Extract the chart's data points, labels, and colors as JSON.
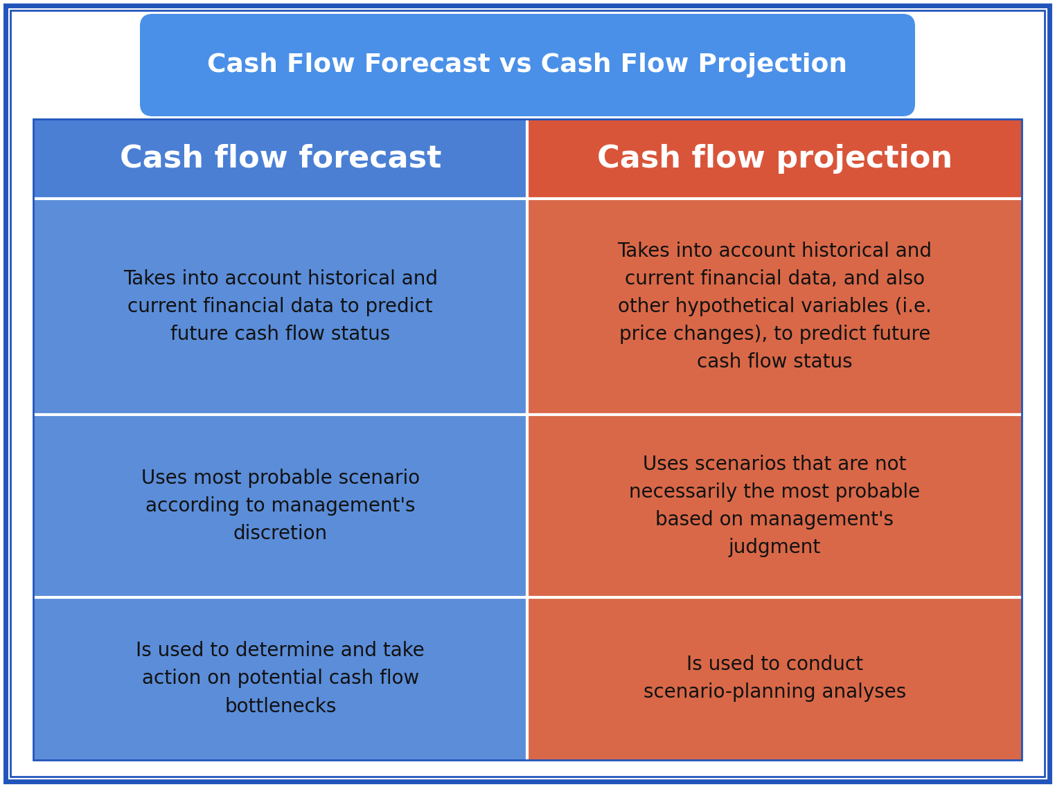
{
  "title": "Cash Flow Forecast vs Cash Flow Projection",
  "title_bg_color": "#4a90e8",
  "title_text_color": "#ffffff",
  "background_color": "#ffffff",
  "outer_border_color": "#2255bb",
  "col1_header": "Cash flow forecast",
  "col2_header": "Cash flow projection",
  "col1_header_bg": "#4a7fd4",
  "col2_header_bg": "#d9553a",
  "header_text_color": "#ffffff",
  "col1_row_bg": "#5b8dd9",
  "col2_row_bg": "#d96848",
  "row_text_color": "#111111",
  "rows": [
    {
      "col1": "Takes into account historical and\ncurrent financial data to predict\nfuture cash flow status",
      "col2": "Takes into account historical and\ncurrent financial data, and also\nother hypothetical variables (i.e.\nprice changes), to predict future\ncash flow status"
    },
    {
      "col1": "Uses most probable scenario\naccording to management's\ndiscretion",
      "col2": "Uses scenarios that are not\nnecessarily the most probable\nbased on management's\njudgment"
    },
    {
      "col1": "Is used to determine and take\naction on potential cash flow\nbottlenecks",
      "col2": "Is used to conduct\nscenario-planning analyses"
    }
  ],
  "fig_width": 15.23,
  "fig_height": 11.37,
  "dpi": 100
}
